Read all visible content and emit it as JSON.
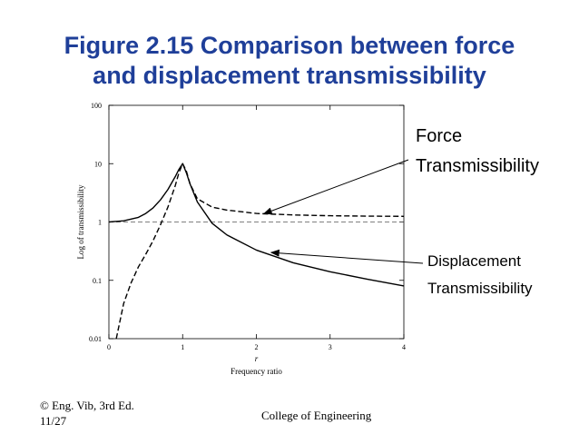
{
  "slide": {
    "title_line1": "Figure 2.15 Comparison between force",
    "title_line2": "and displacement transmissibility",
    "footer_left_line1": "© Eng. Vib, 3rd Ed.",
    "footer_left_line2": "11/27",
    "footer_center": "College of Engineering",
    "title_color": "#1f3f99"
  },
  "callouts": {
    "force_line1": "Force",
    "force_line2": "Transmissibility",
    "displacement_line1": "Displacement",
    "displacement_line2": "Transmissibility"
  },
  "chart_data": {
    "type": "line",
    "xlabel_symbol": "r",
    "xlabel": "Frequency ratio",
    "ylabel": "Log of transmissibility",
    "xlim": [
      0,
      4
    ],
    "ylim": [
      0.01,
      100
    ],
    "y_scale": "log",
    "x_ticks": [
      "0",
      "1",
      "2",
      "3",
      "4"
    ],
    "y_ticks": [
      "0.01",
      "0.1",
      "1",
      "10",
      "100"
    ],
    "grid": false,
    "reference_line": {
      "y": 1,
      "style": "dashed"
    },
    "series": [
      {
        "name": "Force Transmissibility",
        "style": "dashed",
        "x": [
          0.1,
          0.2,
          0.3,
          0.4,
          0.5,
          0.6,
          0.7,
          0.8,
          0.9,
          0.95,
          1.0,
          1.05,
          1.1,
          1.2,
          1.4,
          1.6,
          2.0,
          2.5,
          3.0,
          3.5,
          4.0
        ],
        "y": [
          0.01,
          0.04,
          0.09,
          0.17,
          0.28,
          0.48,
          0.9,
          1.8,
          4.2,
          7.0,
          10.0,
          7.5,
          4.5,
          2.5,
          1.8,
          1.6,
          1.4,
          1.32,
          1.28,
          1.26,
          1.25
        ]
      },
      {
        "name": "Displacement Transmissibility",
        "style": "solid",
        "x": [
          0.0,
          0.2,
          0.4,
          0.5,
          0.6,
          0.7,
          0.8,
          0.9,
          0.95,
          1.0,
          1.05,
          1.1,
          1.2,
          1.4,
          1.6,
          2.0,
          2.5,
          3.0,
          3.5,
          4.0
        ],
        "y": [
          1.0,
          1.05,
          1.2,
          1.4,
          1.75,
          2.4,
          3.6,
          6.0,
          8.0,
          10.0,
          7.0,
          4.5,
          2.2,
          0.95,
          0.6,
          0.33,
          0.2,
          0.14,
          0.105,
          0.08
        ]
      }
    ],
    "annotations": [
      {
        "label_ref": "Force Transmissibility",
        "points_to": {
          "x": 2.1,
          "y": 1.38
        }
      },
      {
        "label_ref": "Displacement Transmissibility",
        "points_to": {
          "x": 2.2,
          "y": 0.3
        }
      }
    ]
  }
}
